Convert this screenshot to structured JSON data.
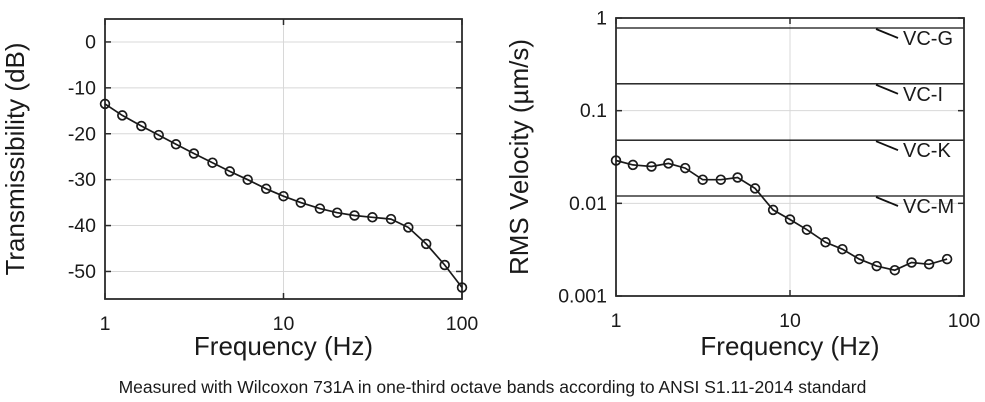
{
  "caption": "Measured with Wilcoxon 731A in one-third octave bands according to ANSI S1.11-2014 standard",
  "colors": {
    "line": "#1a1a1a",
    "marker": "#1a1a1a",
    "frame": "#2b2b2b",
    "grid": "#d8d8d8",
    "reference_line": "#111111",
    "text": "#1a1a1a"
  },
  "chart_data": [
    {
      "type": "line",
      "name": "transmissibility",
      "xlabel": "Frequency (Hz)",
      "ylabel": "Transmissibility (dB)",
      "xscale": "log",
      "yscale": "linear",
      "xlim": [
        1,
        100
      ],
      "ylim": [
        -56,
        5
      ],
      "xticks": [
        1,
        10,
        100
      ],
      "xticklabels": [
        "1",
        "10",
        "100"
      ],
      "yticks": [
        0,
        -10,
        -20,
        -30,
        -40,
        -50
      ],
      "yticklabels": [
        "0",
        "-10",
        "-20",
        "-30",
        "-40",
        "-50"
      ],
      "grid": true,
      "marker": "circle",
      "x": [
        1,
        1.25,
        1.6,
        2,
        2.5,
        3.15,
        4,
        5,
        6.3,
        8,
        10,
        12.5,
        16,
        20,
        25,
        31.5,
        40,
        50,
        63,
        80,
        100
      ],
      "y": [
        -13.5,
        -16,
        -18.3,
        -20.3,
        -22.3,
        -24.3,
        -26.3,
        -28.2,
        -30,
        -32,
        -33.6,
        -35,
        -36.3,
        -37.2,
        -37.8,
        -38.2,
        -38.6,
        -40.4,
        -44,
        -48.6,
        -53.5
      ]
    },
    {
      "type": "line",
      "name": "rms-velocity",
      "xlabel": "Frequency (Hz)",
      "ylabel": "RMS Velocity (µm/s)",
      "xscale": "log",
      "yscale": "log",
      "xlim": [
        1,
        100
      ],
      "ylim": [
        0.001,
        1
      ],
      "xticks": [
        1,
        10,
        100
      ],
      "xticklabels": [
        "1",
        "10",
        "100"
      ],
      "yticks": [
        1,
        0.1,
        0.01,
        0.001
      ],
      "yticklabels": [
        "1",
        "0.1",
        "0.01",
        "0.001"
      ],
      "grid": true,
      "marker": "circle",
      "reference_lines": [
        {
          "label": "VC-G",
          "value": 0.78
        },
        {
          "label": "VC-I",
          "value": 0.195
        },
        {
          "label": "VC-K",
          "value": 0.048
        },
        {
          "label": "VC-M",
          "value": 0.012
        }
      ],
      "x": [
        1,
        1.25,
        1.6,
        2,
        2.5,
        3.15,
        4,
        5,
        6.3,
        8,
        10,
        12.5,
        16,
        20,
        25,
        31.5,
        40,
        50,
        63,
        80
      ],
      "y": [
        0.029,
        0.026,
        0.025,
        0.027,
        0.024,
        0.018,
        0.018,
        0.019,
        0.0145,
        0.0085,
        0.0067,
        0.0052,
        0.0038,
        0.0032,
        0.0025,
        0.0021,
        0.0019,
        0.0023,
        0.0022,
        0.0025
      ]
    }
  ]
}
